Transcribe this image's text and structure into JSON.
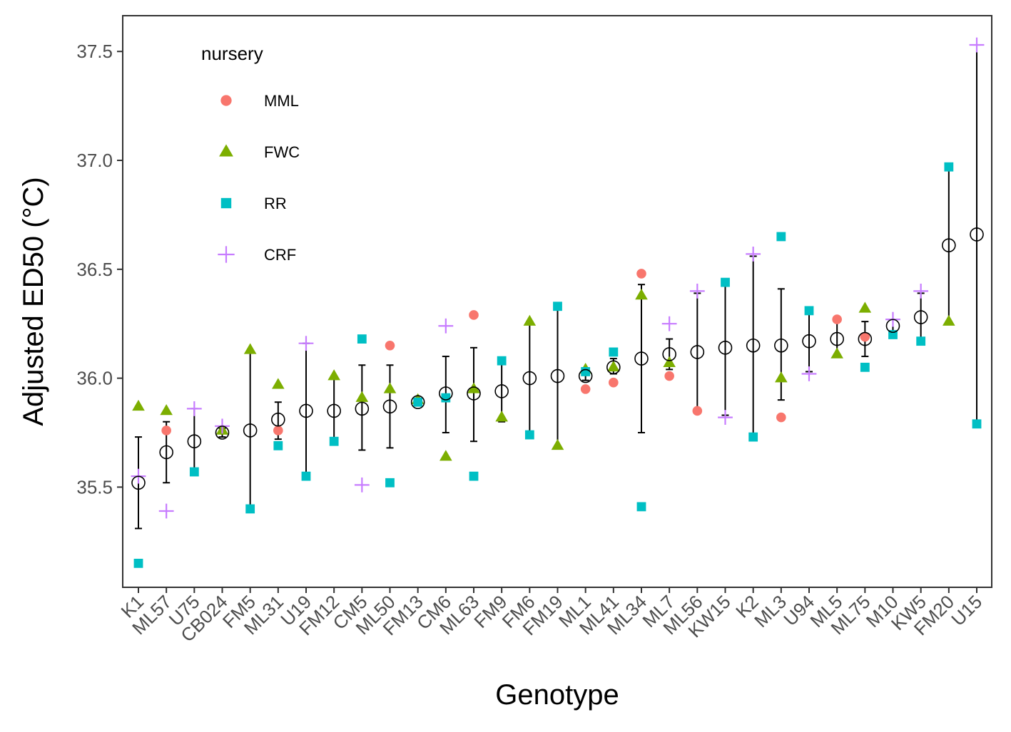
{
  "chart_data": {
    "type": "scatter",
    "xlabel": "Genotype",
    "ylabel": "Adjusted ED50 (°C)",
    "ylim": [
      35.05,
      37.65
    ],
    "yticks": [
      35.5,
      36.0,
      36.5,
      37.0,
      37.5
    ],
    "ytick_labels": [
      "35.5",
      "36.0",
      "36.5",
      "37.0",
      "37.5"
    ],
    "grid": false,
    "legend": {
      "title": "nursery",
      "position": "top-left",
      "entries": [
        "MML",
        "FWC",
        "RR",
        "CRF"
      ]
    },
    "colors": {
      "MML": "#F8766D",
      "FWC": "#7CAE00",
      "RR": "#00BFC4",
      "CRF": "#C77CFF"
    },
    "markers": {
      "MML": "circle",
      "FWC": "triangle",
      "RR": "square",
      "CRF": "plus"
    },
    "categories": [
      "K1",
      "ML57",
      "U75",
      "CB024",
      "FM5",
      "ML31",
      "U19",
      "FM12",
      "CM5",
      "ML50",
      "FM13",
      "CM6",
      "ML63",
      "FM9",
      "FM6",
      "FM19",
      "ML1",
      "ML41",
      "ML34",
      "ML7",
      "ML56",
      "KW15",
      "K2",
      "ML3",
      "U94",
      "ML5",
      "ML75",
      "M10",
      "KW5",
      "FM20",
      "U15"
    ],
    "series": [
      {
        "name": "MML",
        "values": [
          null,
          35.76,
          null,
          null,
          null,
          35.76,
          null,
          null,
          null,
          36.15,
          null,
          null,
          36.29,
          null,
          null,
          null,
          35.95,
          35.98,
          36.48,
          36.01,
          35.85,
          null,
          null,
          35.82,
          null,
          36.27,
          36.19,
          null,
          null,
          null,
          null
        ]
      },
      {
        "name": "FWC",
        "values": [
          35.87,
          35.85,
          null,
          35.76,
          36.13,
          35.97,
          null,
          36.01,
          35.91,
          35.95,
          35.9,
          35.64,
          35.95,
          35.82,
          36.26,
          35.69,
          36.04,
          36.05,
          36.38,
          36.07,
          null,
          null,
          null,
          36.0,
          null,
          36.11,
          36.32,
          null,
          null,
          36.26,
          null
        ]
      },
      {
        "name": "RR",
        "values": [
          35.15,
          null,
          35.57,
          null,
          35.4,
          35.69,
          35.55,
          35.71,
          36.18,
          35.52,
          35.89,
          35.91,
          35.55,
          36.08,
          35.74,
          36.33,
          36.03,
          36.12,
          35.41,
          null,
          null,
          36.44,
          35.73,
          36.65,
          36.31,
          null,
          36.05,
          36.2,
          36.17,
          36.97,
          35.79
        ]
      },
      {
        "name": "CRF",
        "values": [
          35.55,
          35.39,
          35.86,
          35.78,
          null,
          null,
          36.16,
          null,
          35.51,
          null,
          null,
          36.24,
          null,
          null,
          null,
          null,
          null,
          null,
          null,
          36.25,
          36.4,
          35.82,
          36.57,
          null,
          36.02,
          null,
          null,
          36.27,
          36.4,
          null,
          37.53
        ]
      }
    ],
    "mean": [
      35.52,
      35.66,
      35.71,
      35.75,
      35.76,
      35.81,
      35.85,
      35.85,
      35.86,
      35.87,
      35.89,
      35.93,
      35.93,
      35.94,
      36.0,
      36.01,
      36.01,
      36.05,
      36.09,
      36.11,
      36.12,
      36.14,
      36.15,
      36.15,
      36.17,
      36.18,
      36.18,
      36.24,
      36.28,
      36.61,
      36.66
    ],
    "error_low": [
      35.31,
      35.52,
      35.56,
      35.73,
      35.4,
      35.72,
      35.55,
      35.71,
      35.67,
      35.68,
      35.88,
      35.75,
      35.71,
      35.8,
      35.74,
      35.69,
      35.99,
      36.02,
      35.75,
      36.04,
      35.84,
      35.83,
      35.74,
      35.9,
      36.03,
      36.11,
      36.1,
      36.21,
      36.16,
      36.26,
      35.79
    ],
    "error_high": [
      35.73,
      35.8,
      35.86,
      35.77,
      36.12,
      35.89,
      36.16,
      36.0,
      36.06,
      36.06,
      35.9,
      36.1,
      36.14,
      36.08,
      36.26,
      36.33,
      36.03,
      36.09,
      36.43,
      36.18,
      36.39,
      36.44,
      36.56,
      36.41,
      36.31,
      36.26,
      36.26,
      36.27,
      36.39,
      36.96,
      37.53
    ]
  }
}
